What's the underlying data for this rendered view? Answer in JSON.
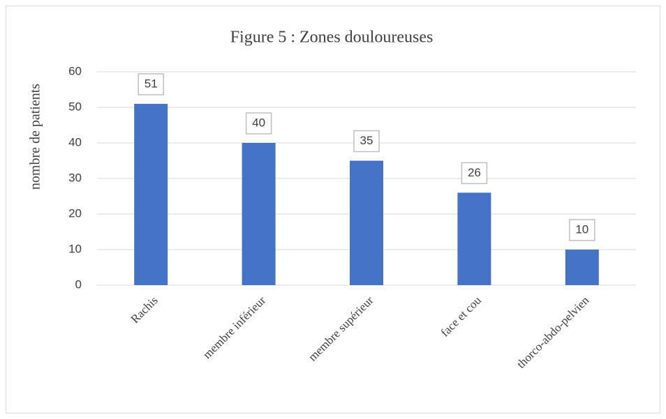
{
  "chart_data": {
    "type": "bar",
    "title": "Figure 5 : Zones douloureuses",
    "ylabel": "nombre de patients",
    "categories": [
      "Rachis",
      "membre inférieur",
      "membre supérieur",
      "face et cou",
      "thorco-abdo-pelvien"
    ],
    "values": [
      51,
      40,
      35,
      26,
      10
    ],
    "color": "#4472c4",
    "ylim": [
      0,
      60
    ],
    "yticks": [
      0,
      10,
      20,
      30,
      40,
      50,
      60
    ],
    "grid": true
  }
}
